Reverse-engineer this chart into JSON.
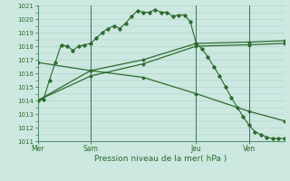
{
  "xlabel": "Pression niveau de la mer( hPa )",
  "ylim": [
    1011,
    1021
  ],
  "yticks": [
    1011,
    1012,
    1013,
    1014,
    1015,
    1016,
    1017,
    1018,
    1019,
    1020,
    1021
  ],
  "day_labels": [
    "Mer",
    "Sam",
    "Jeu",
    "Ven"
  ],
  "day_positions": [
    0,
    9,
    27,
    36
  ],
  "background_color": "#cce8e0",
  "grid_color": "#aacfc8",
  "line_color": "#2d6b2d",
  "vline_positions": [
    9,
    27,
    36
  ],
  "line1_x": [
    0,
    1,
    2,
    3,
    4,
    5,
    6,
    7,
    8,
    9,
    10,
    11,
    12,
    13,
    14,
    15,
    16,
    17,
    18,
    19,
    20,
    21,
    22,
    23,
    24,
    25,
    26,
    27,
    28,
    29,
    30,
    31,
    32,
    33,
    34,
    35,
    36,
    37,
    38,
    39,
    40,
    41,
    42
  ],
  "line1_y": [
    1014.0,
    1014.1,
    1015.5,
    1016.8,
    1018.1,
    1018.0,
    1017.7,
    1018.0,
    1018.1,
    1018.2,
    1018.6,
    1019.0,
    1019.3,
    1019.5,
    1019.3,
    1019.7,
    1020.2,
    1020.6,
    1020.5,
    1020.5,
    1020.7,
    1020.5,
    1020.5,
    1020.2,
    1020.3,
    1020.3,
    1019.8,
    1018.2,
    1017.8,
    1017.2,
    1016.5,
    1015.8,
    1015.0,
    1014.2,
    1013.5,
    1012.8,
    1012.2,
    1011.7,
    1011.5,
    1011.3,
    1011.2,
    1011.2,
    1011.2
  ],
  "line_up_x": [
    0,
    9,
    18,
    27,
    36,
    42
  ],
  "line_up_y": [
    1014.0,
    1016.2,
    1017.0,
    1018.2,
    1018.3,
    1018.4
  ],
  "line_up2_x": [
    0,
    9,
    18,
    27,
    36,
    42
  ],
  "line_up2_y": [
    1014.0,
    1015.8,
    1016.7,
    1018.0,
    1018.1,
    1018.2
  ],
  "line_down_x": [
    0,
    9,
    18,
    27,
    36,
    42
  ],
  "line_down_y": [
    1016.8,
    1016.2,
    1015.7,
    1014.5,
    1013.2,
    1012.5
  ]
}
